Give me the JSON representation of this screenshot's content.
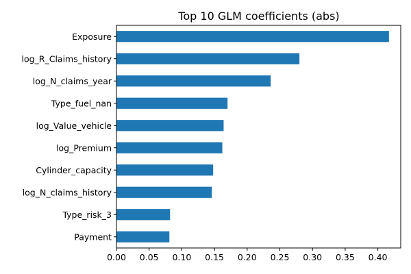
{
  "chart_data": {
    "type": "bar",
    "orientation": "horizontal",
    "title": "Top 10 GLM coefficients (abs)",
    "xlabel": "",
    "ylabel": "",
    "categories": [
      "Exposure",
      "log_R_Claims_history",
      "log_N_claims_year",
      "Type_fuel_nan",
      "log_Value_vehicle",
      "log_Premium",
      "Cylinder_capacity",
      "log_N_claims_history",
      "Type_risk_3",
      "Payment"
    ],
    "values": [
      0.417,
      0.28,
      0.236,
      0.17,
      0.164,
      0.162,
      0.148,
      0.146,
      0.082,
      0.081
    ],
    "xlim": [
      0,
      0.435
    ],
    "xticks": [
      0.0,
      0.05,
      0.1,
      0.15,
      0.2,
      0.25,
      0.3,
      0.35,
      0.4
    ],
    "xtick_labels": [
      "0.00",
      "0.05",
      "0.10",
      "0.15",
      "0.20",
      "0.25",
      "0.30",
      "0.35",
      "0.40"
    ],
    "grid": false,
    "legend": "none",
    "bar_color": "#1f77b4"
  }
}
